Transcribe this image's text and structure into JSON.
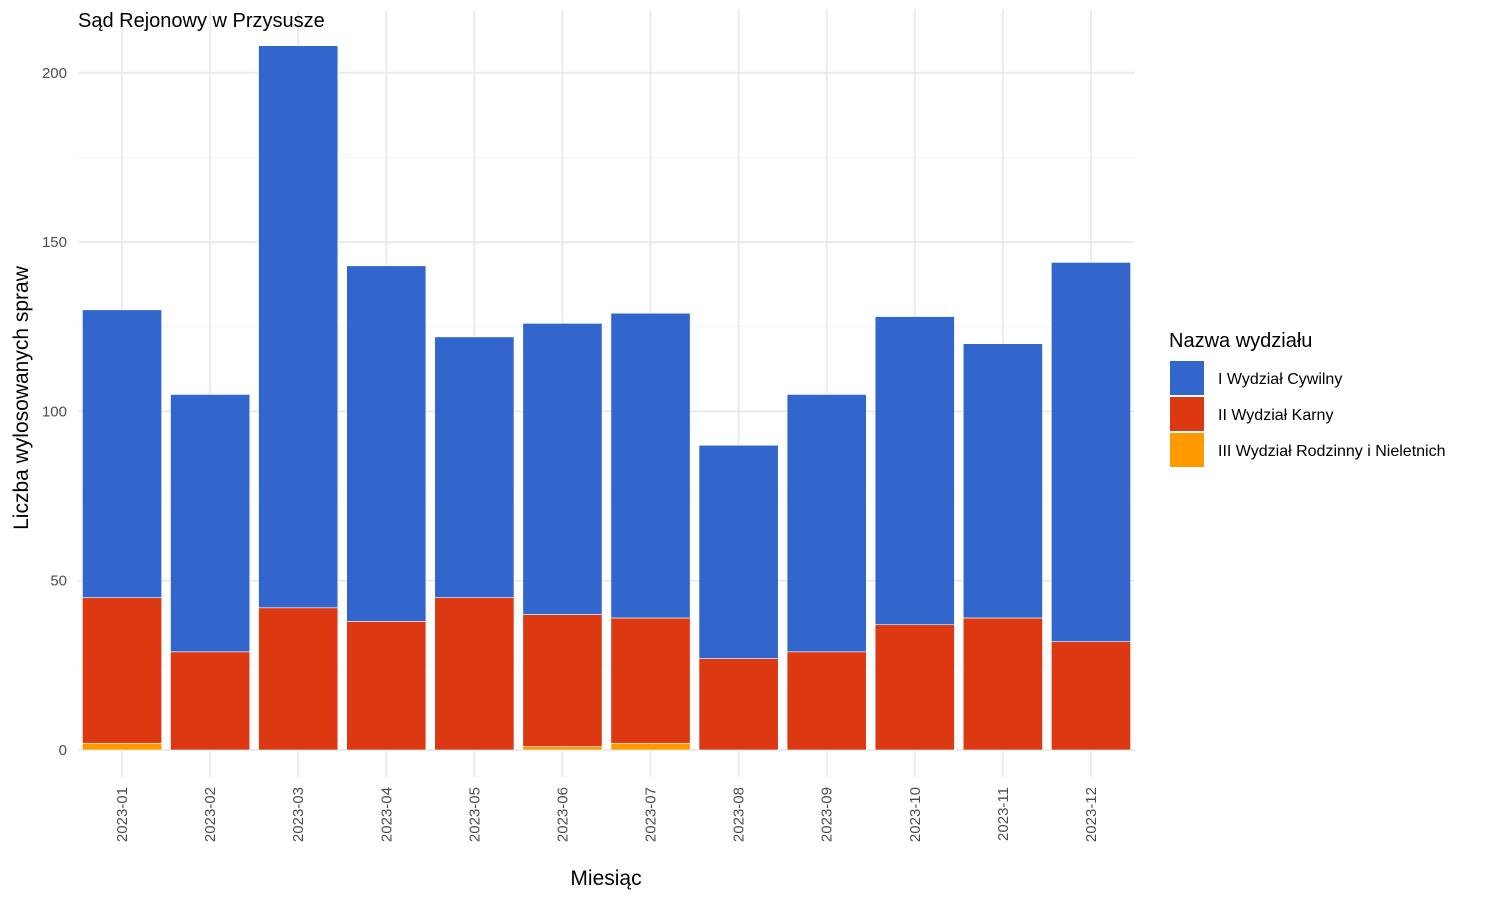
{
  "chart_data": {
    "type": "bar",
    "stacked": true,
    "title": "Sąd Rejonowy w Przysusze",
    "xlabel": "Miesiąc",
    "ylabel": "Liczba wylosowanych spraw",
    "ylim": [
      0,
      215
    ],
    "yticks": [
      0,
      50,
      100,
      150,
      200
    ],
    "grid": true,
    "legend_title": "Nazwa wydziału",
    "legend_position": "right",
    "categories": [
      "2023-01",
      "2023-02",
      "2023-03",
      "2023-04",
      "2023-05",
      "2023-06",
      "2023-07",
      "2023-08",
      "2023-09",
      "2023-10",
      "2023-11",
      "2023-12"
    ],
    "series": [
      {
        "name": "I Wydział Cywilny",
        "color": "#3366cc",
        "values": [
          85,
          76,
          166,
          105,
          77,
          86,
          90,
          63,
          76,
          91,
          81,
          112
        ]
      },
      {
        "name": "II Wydział Karny",
        "color": "#dc3912",
        "values": [
          43,
          29,
          42,
          38,
          45,
          39,
          37,
          27,
          29,
          37,
          39,
          32
        ]
      },
      {
        "name": "III Wydział Rodzinny i Nieletnich",
        "color": "#ff9900",
        "values": [
          2,
          0,
          0,
          0,
          0,
          1,
          2,
          0,
          0,
          0,
          0,
          0
        ]
      }
    ]
  }
}
